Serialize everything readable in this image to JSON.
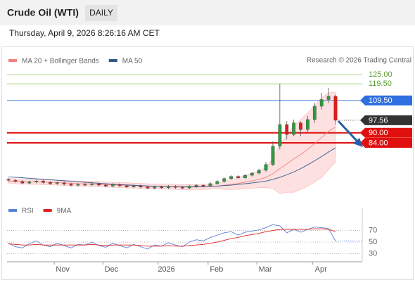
{
  "chart_data": {
    "type": "candlestick",
    "title": "Crude Oil (WTI)",
    "timeframe": "DAILY",
    "subtitle": "Thursday, April 9, 2026 8:26:16 AM CET",
    "source": "Research © 2026 Trading Central",
    "up_color": "#2e9a3e",
    "down_color": "#d81e1e",
    "open": [
      62.0,
      61.5,
      60.8,
      59.8,
      60.5,
      61.0,
      60.2,
      59.5,
      60.0,
      59.2,
      58.5,
      59.0,
      58.8,
      59.4,
      58.6,
      58.0,
      58.9,
      58.2,
      57.5,
      58.0,
      57.4,
      56.8,
      57.5,
      57.0,
      57.8,
      57.2,
      56.9,
      57.9,
      58.5,
      58.2,
      59.5,
      60.8,
      62.5,
      63.8,
      63.0,
      64.5,
      65.8,
      67.5,
      71.0,
      82.0,
      95.0,
      89.0,
      96.0,
      92.0,
      98.0,
      106.0,
      110.0,
      112.0
    ],
    "high": [
      62.8,
      62.3,
      61.6,
      61.3,
      61.8,
      61.8,
      61.0,
      60.8,
      60.8,
      60.0,
      59.8,
      59.8,
      60.2,
      60.2,
      59.4,
      59.7,
      59.7,
      59.0,
      58.8,
      58.8,
      58.2,
      58.3,
      58.3,
      58.6,
      58.6,
      58.0,
      58.7,
      59.3,
      59.3,
      60.3,
      61.6,
      63.3,
      64.6,
      64.6,
      65.3,
      66.6,
      68.5,
      72.5,
      85,
      119.5,
      97,
      98,
      97,
      100,
      108,
      114,
      117,
      113
    ],
    "low": [
      60.7,
      60.0,
      59.0,
      59.0,
      59.7,
      59.4,
      58.7,
      58.7,
      58.4,
      57.7,
      57.7,
      58.0,
      58.0,
      57.8,
      57.2,
      57.2,
      57.4,
      56.7,
      56.7,
      56.6,
      56.0,
      56.0,
      56.2,
      56.2,
      56.4,
      56.1,
      56.1,
      57.1,
      57.4,
      57.4,
      58.7,
      60.0,
      61.7,
      62.2,
      62.2,
      63.7,
      65.0,
      66.5,
      70,
      80,
      86,
      88,
      88,
      90,
      96,
      104,
      108,
      95
    ],
    "close": [
      61.5,
      60.8,
      59.8,
      60.5,
      61.0,
      60.2,
      59.5,
      60.0,
      59.2,
      58.5,
      59.0,
      58.8,
      59.4,
      58.6,
      58.0,
      58.9,
      58.2,
      57.5,
      58.0,
      57.4,
      56.8,
      57.5,
      57.0,
      57.8,
      57.2,
      56.9,
      57.9,
      58.5,
      58.2,
      59.5,
      60.8,
      62.5,
      63.8,
      63.0,
      64.5,
      65.8,
      67.5,
      71.0,
      82.0,
      95.0,
      89.0,
      96.0,
      92.0,
      98.0,
      106.0,
      110.0,
      112.0,
      97.56
    ],
    "ylim": [
      49.3,
      131.8
    ],
    "xticks": [
      {
        "value": 7.8,
        "label": "Nov"
      },
      {
        "value": 14.8,
        "label": "Dec"
      },
      {
        "value": 22.7,
        "label": "2026"
      },
      {
        "value": 29.9,
        "label": "Feb"
      },
      {
        "value": 36.9,
        "label": "Mar"
      },
      {
        "value": 44.9,
        "label": "Apr"
      }
    ],
    "series": [
      {
        "name": "MA 20 + Bollinger Bands",
        "color": "#f28080",
        "band_color": "#fde0e0",
        "values": [
          61.0,
          60.9,
          60.7,
          60.6,
          60.5,
          60.4,
          60.3,
          60.1,
          59.9,
          59.7,
          59.5,
          59.4,
          59.3,
          59.1,
          58.9,
          58.8,
          58.6,
          58.5,
          58.3,
          58.1,
          57.9,
          57.8,
          57.7,
          57.6,
          57.5,
          57.4,
          57.4,
          57.4,
          57.5,
          57.7,
          58.0,
          58.5,
          59.0,
          59.6,
          60.3,
          61.1,
          62.0,
          63.2,
          65.5,
          68.5,
          71.3,
          74.3,
          77.0,
          80.0,
          83.5,
          87.2,
          91.0,
          93.5
        ],
        "upper": [
          62.5,
          62.4,
          62.2,
          62.1,
          62.0,
          61.9,
          61.8,
          61.6,
          61.4,
          61.2,
          61.0,
          60.9,
          60.8,
          60.6,
          60.4,
          60.3,
          60.1,
          60.0,
          59.8,
          59.6,
          59.4,
          59.3,
          59.2,
          59.1,
          59.0,
          58.9,
          58.9,
          58.9,
          59.0,
          59.2,
          59.5,
          61.0,
          62.0,
          63.1,
          64.3,
          65.6,
          67.0,
          69.2,
          74.5,
          83.5,
          88.3,
          94.3,
          98.0,
          102.0,
          106.5,
          111.2,
          114.0,
          114.5
        ],
        "lower": [
          59.5,
          59.4,
          59.2,
          59.1,
          59.0,
          58.9,
          58.8,
          58.6,
          58.4,
          58.2,
          58.0,
          57.9,
          57.8,
          57.6,
          57.4,
          57.3,
          57.1,
          57.0,
          56.8,
          56.6,
          56.4,
          56.3,
          56.2,
          56.1,
          56.0,
          55.9,
          55.9,
          55.9,
          56.0,
          56.2,
          56.5,
          56.0,
          56.0,
          56.1,
          56.3,
          56.6,
          57.0,
          57.2,
          56.5,
          53.5,
          54.3,
          54.3,
          56.0,
          58.0,
          60.5,
          63.2,
          68.0,
          72.5
        ]
      },
      {
        "name": "MA 50",
        "color": "#34588f",
        "values": [
          63.5,
          63.3,
          63.0,
          62.7,
          62.4,
          62.1,
          61.8,
          61.5,
          61.2,
          60.9,
          60.6,
          60.3,
          60.0,
          59.7,
          59.4,
          59.1,
          58.9,
          58.7,
          58.5,
          58.3,
          58.1,
          57.9,
          57.8,
          57.7,
          57.6,
          57.6,
          57.6,
          57.6,
          57.7,
          57.8,
          58.0,
          58.3,
          58.6,
          59.0,
          59.4,
          59.9,
          60.4,
          61.0,
          62.0,
          63.3,
          64.8,
          66.5,
          68.5,
          70.8,
          73.2,
          75.8,
          78.5,
          81.0
        ]
      }
    ],
    "levels": [
      {
        "value": 125,
        "label": "125.00",
        "color": "#5a9e2f",
        "line_color": "#a8d58a",
        "style": "text",
        "line": "thin"
      },
      {
        "value": 119.5,
        "label": "119.50",
        "color": "#5a9e2f",
        "line_color": "#a8d58a",
        "style": "text",
        "line": "thin"
      },
      {
        "value": 109.5,
        "label": "109.50",
        "color": "#2f6fe0",
        "line_color": "#5a8de0",
        "style": "tag",
        "line": "thin"
      },
      {
        "value": 97.56,
        "label": "97.56",
        "color": "#333333",
        "line_color": "#555555",
        "style": "tag",
        "line": "dotted"
      },
      {
        "value": 90,
        "label": "90.00",
        "color": "#e01010",
        "line_color": "#e01010",
        "style": "tag",
        "line": "thick"
      },
      {
        "value": 84,
        "label": "84.00",
        "color": "#e01010",
        "line_color": "#e01010",
        "style": "tag",
        "line": "thick"
      }
    ],
    "rsi": {
      "ylim": [
        18.5,
        97.3
      ],
      "yticks": [
        70,
        50,
        30
      ],
      "series": [
        {
          "name": "RSI",
          "color": "#5b7fd6",
          "values": [
            48,
            42,
            40,
            47,
            52,
            45,
            42,
            48,
            44,
            40,
            46,
            45,
            50,
            44,
            41,
            48,
            44,
            40,
            46,
            42,
            38,
            45,
            43,
            49,
            45,
            42,
            50,
            54,
            52,
            58,
            62,
            66,
            68,
            62,
            67,
            69,
            71,
            75,
            80,
            78,
            66,
            72,
            67,
            72,
            76,
            75,
            73,
            52
          ]
        },
        {
          "name": "9MA",
          "color": "#e02020",
          "values": [
            47,
            46,
            45,
            45,
            46,
            45,
            45,
            45,
            45,
            45,
            45,
            45,
            46,
            45,
            44,
            45,
            45,
            45,
            45,
            44,
            43,
            43,
            43,
            44,
            43,
            43,
            44,
            45,
            46,
            48,
            50,
            53,
            56,
            58,
            61,
            63,
            65,
            68,
            70,
            72,
            72,
            72,
            72,
            72,
            73,
            73,
            72,
            68
          ]
        }
      ]
    }
  }
}
